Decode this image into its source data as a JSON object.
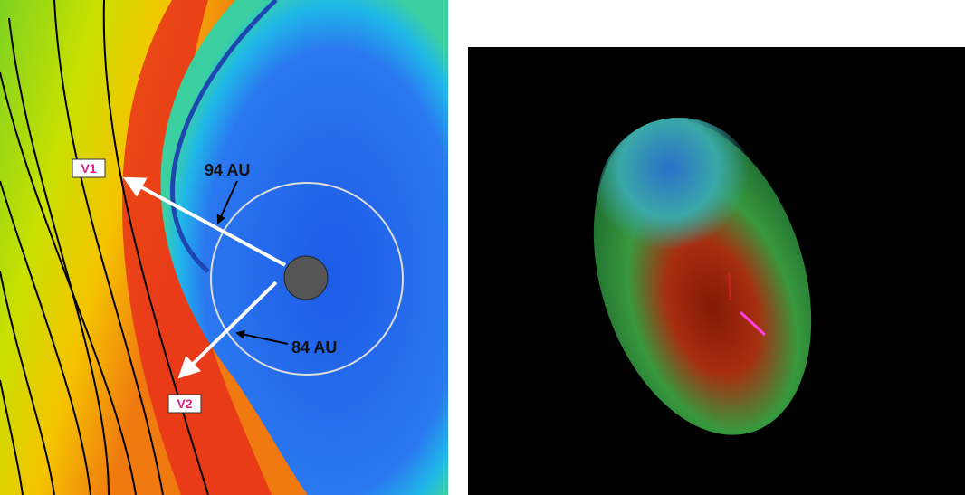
{
  "left_panel": {
    "labels": {
      "v1": "V1",
      "v2": "V2",
      "dist_94": "94 AU",
      "dist_84": "84 AU"
    }
  }
}
